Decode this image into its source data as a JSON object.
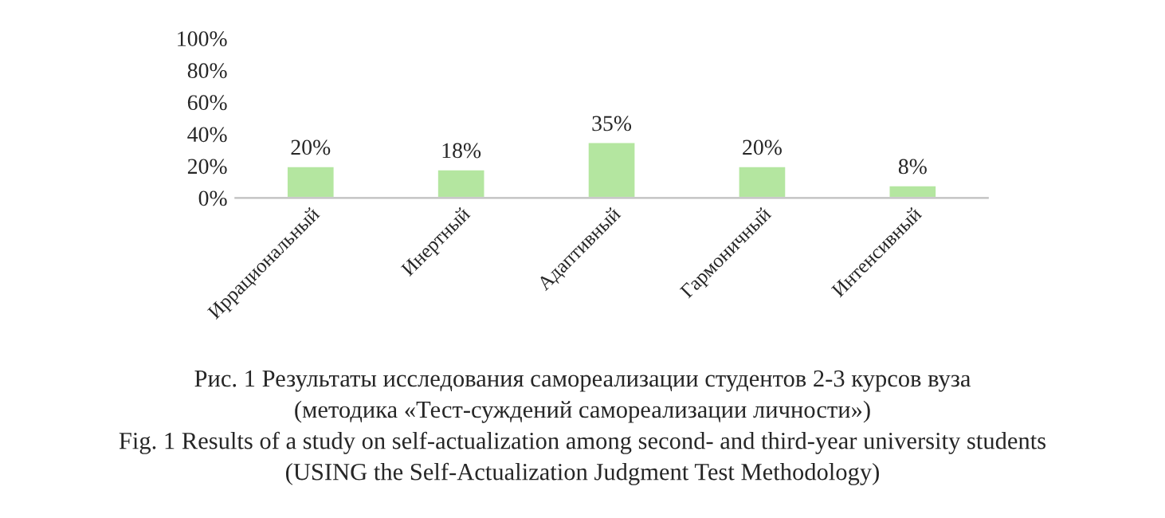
{
  "chart_data": {
    "type": "bar",
    "categories": [
      "Иррациональный",
      "Инертный",
      "Адаптивный",
      "Гармоничный",
      "Интенсивный"
    ],
    "values": [
      20,
      18,
      35,
      20,
      8
    ],
    "value_labels": [
      "20%",
      "18%",
      "35%",
      "20%",
      "8%"
    ],
    "color": "#b4e6a0",
    "ylim": [
      0,
      100
    ],
    "yticks": [
      {
        "value": 0,
        "label": "0%"
      },
      {
        "value": 20,
        "label": "20%"
      },
      {
        "value": 40,
        "label": "40%"
      },
      {
        "value": 60,
        "label": "60%"
      },
      {
        "value": 80,
        "label": "80%"
      },
      {
        "value": 100,
        "label": "100%"
      }
    ],
    "grid": false,
    "annotations": [
      "Рис. 1 Результаты исследования самореализации студентов 2-3 курсов вуза",
      "(методика «Тест-суждений самореализации личности»)",
      "Fig. 1 Results of a study on self-actualization among second- and third-year university students",
      "(USING the Self-Actualization Judgment Test Methodology)"
    ]
  }
}
